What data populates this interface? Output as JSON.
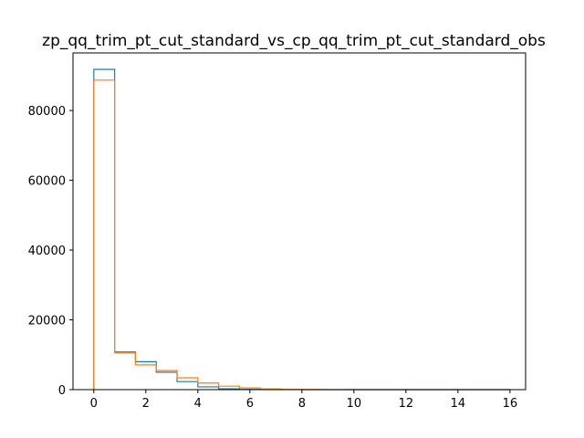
{
  "chart_data": {
    "type": "histogram",
    "title": "zp_qq_trim_pt_cut_standard_vs_cp_qq_trim_pt_cut_standard_obs",
    "xlabel": "",
    "ylabel": "",
    "xlim": [
      -0.8,
      16.6
    ],
    "ylim": [
      0,
      96500
    ],
    "xticks": [
      0,
      2,
      4,
      6,
      8,
      10,
      12,
      14,
      16
    ],
    "yticks": [
      0,
      20000,
      40000,
      60000,
      80000
    ],
    "grid": false,
    "legend": "none",
    "bin_edges": [
      0,
      0.8,
      1.6,
      2.4,
      3.2,
      4.0,
      4.8,
      5.6,
      6.4,
      7.2,
      8.0,
      8.8,
      9.6,
      10.4,
      11.2,
      12.0,
      12.8,
      13.6,
      14.4,
      15.2,
      16.0
    ],
    "series": [
      {
        "color": "#1f77b4",
        "values": [
          91800,
          10800,
          8000,
          5000,
          2300,
          800,
          250,
          80,
          30,
          10,
          5,
          0,
          0,
          0,
          0,
          0,
          0,
          0,
          0,
          0
        ]
      },
      {
        "color": "#ff7f0e",
        "values": [
          88700,
          10500,
          7100,
          5500,
          3400,
          1900,
          1000,
          500,
          200,
          80,
          30,
          10,
          5,
          0,
          0,
          0,
          0,
          0,
          0,
          0
        ]
      }
    ]
  }
}
